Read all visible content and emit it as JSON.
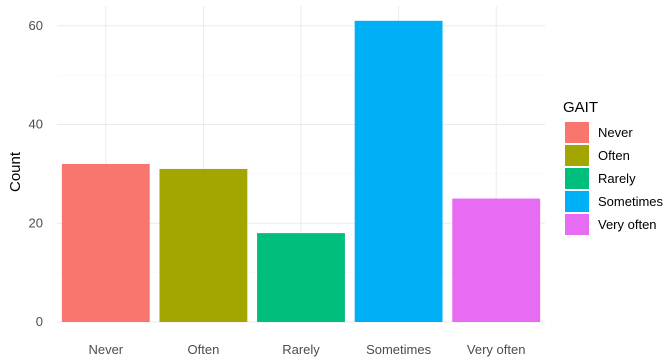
{
  "chart_data": {
    "type": "bar",
    "categories": [
      "Never",
      "Often",
      "Rarely",
      "Sometimes",
      "Very often"
    ],
    "values": [
      32,
      31,
      18,
      61,
      25
    ],
    "colors": [
      "#F8766D",
      "#A3A500",
      "#00BF7D",
      "#00B0F6",
      "#E76BF3"
    ],
    "xlabel": "",
    "ylabel": "Count",
    "ylim": [
      0,
      64
    ],
    "yticks": [
      0,
      20,
      40,
      60
    ],
    "grid": true,
    "legend": {
      "title": "GAIT",
      "placement": "right",
      "entries": [
        "Never",
        "Often",
        "Rarely",
        "Sometimes",
        "Very often"
      ]
    }
  }
}
